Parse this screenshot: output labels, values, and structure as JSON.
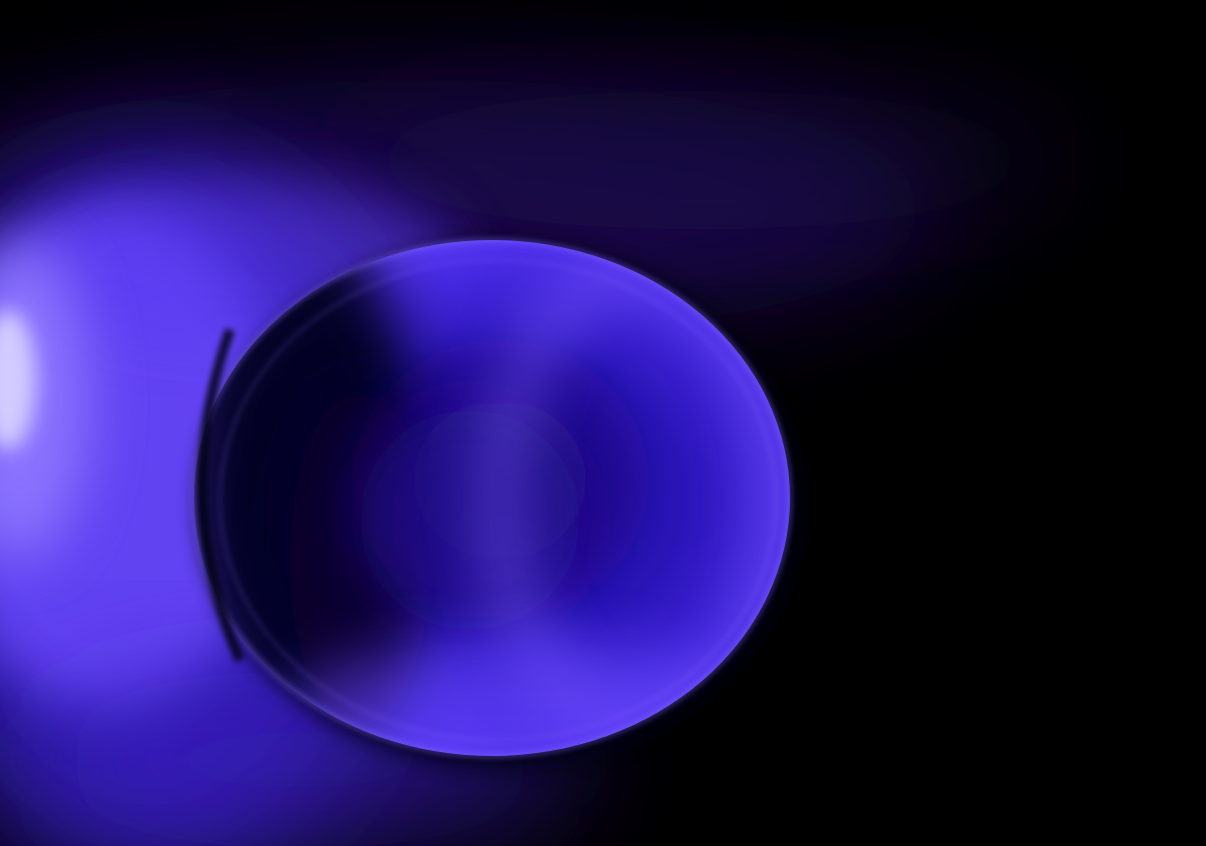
{
  "image": {
    "subject": "object-under-uv-light",
    "colors": {
      "background": "#000000",
      "glow_core": "#d9d4ff",
      "glow_mid": "#6f4cff",
      "glow_outer": "#3a1fd9",
      "disc_fill": "#2a12c8",
      "disc_rim": "#7a5cff",
      "disc_shadow": "#050214"
    }
  }
}
